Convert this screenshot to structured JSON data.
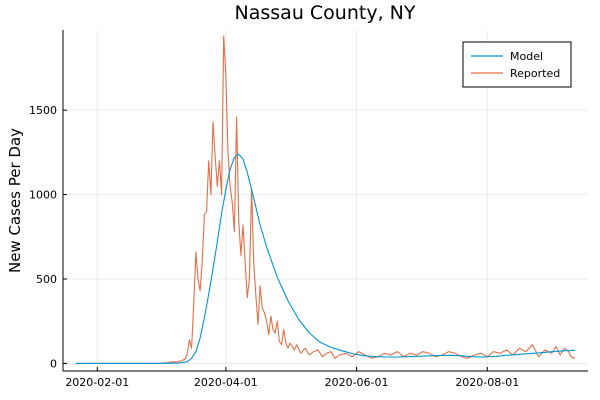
{
  "chart_data": {
    "type": "line",
    "title": "Nassau County, NY",
    "xlabel": "",
    "ylabel": "New Cases Per Day",
    "x_type": "date",
    "x_start": "2020-01-22",
    "x_end": "2020-09-11",
    "xlim": [
      "2020-01-16",
      "2020-09-17"
    ],
    "ylim": [
      -45,
      1975
    ],
    "x_ticks": [
      "2020-02-01",
      "2020-04-01",
      "2020-06-01",
      "2020-08-01"
    ],
    "y_ticks": [
      0,
      500,
      1000,
      1500
    ],
    "grid": true,
    "legend_position": "top-right",
    "series": [
      {
        "name": "Model",
        "color": "#0096d1",
        "x": [
          "2020-01-22",
          "2020-03-01",
          "2020-03-10",
          "2020-03-14",
          "2020-03-16",
          "2020-03-18",
          "2020-03-20",
          "2020-03-22",
          "2020-03-24",
          "2020-03-26",
          "2020-03-28",
          "2020-03-30",
          "2020-04-01",
          "2020-04-03",
          "2020-04-05",
          "2020-04-07",
          "2020-04-09",
          "2020-04-11",
          "2020-04-14",
          "2020-04-17",
          "2020-04-20",
          "2020-04-25",
          "2020-04-30",
          "2020-05-05",
          "2020-05-10",
          "2020-05-15",
          "2020-05-20",
          "2020-05-25",
          "2020-05-31",
          "2020-06-05",
          "2020-06-10",
          "2020-06-15",
          "2020-06-20",
          "2020-06-25",
          "2020-06-30",
          "2020-07-05",
          "2020-07-10",
          "2020-07-15",
          "2020-07-20",
          "2020-07-25",
          "2020-07-30",
          "2020-08-05",
          "2020-08-10",
          "2020-08-15",
          "2020-08-20",
          "2020-08-25",
          "2020-08-30",
          "2020-09-04",
          "2020-09-11"
        ],
        "values": [
          0,
          0,
          2,
          10,
          30,
          70,
          150,
          270,
          410,
          560,
          720,
          890,
          1030,
          1150,
          1220,
          1240,
          1210,
          1130,
          980,
          820,
          690,
          510,
          370,
          260,
          180,
          125,
          95,
          75,
          55,
          45,
          40,
          38,
          38,
          40,
          42,
          45,
          47,
          48,
          45,
          40,
          38,
          42,
          48,
          52,
          58,
          62,
          68,
          73,
          78
        ]
      },
      {
        "name": "Reported",
        "color": "#e26f46",
        "x": [
          "2020-01-22",
          "2020-03-01",
          "2020-03-05",
          "2020-03-07",
          "2020-03-09",
          "2020-03-11",
          "2020-03-13",
          "2020-03-14",
          "2020-03-15",
          "2020-03-16",
          "2020-03-17",
          "2020-03-18",
          "2020-03-19",
          "2020-03-20",
          "2020-03-21",
          "2020-03-22",
          "2020-03-23",
          "2020-03-24",
          "2020-03-25",
          "2020-03-26",
          "2020-03-27",
          "2020-03-28",
          "2020-03-29",
          "2020-03-30",
          "2020-03-31",
          "2020-04-01",
          "2020-04-02",
          "2020-04-03",
          "2020-04-04",
          "2020-04-05",
          "2020-04-06",
          "2020-04-07",
          "2020-04-08",
          "2020-04-09",
          "2020-04-10",
          "2020-04-11",
          "2020-04-12",
          "2020-04-13",
          "2020-04-14",
          "2020-04-15",
          "2020-04-16",
          "2020-04-17",
          "2020-04-18",
          "2020-04-19",
          "2020-04-20",
          "2020-04-21",
          "2020-04-22",
          "2020-04-23",
          "2020-04-24",
          "2020-04-25",
          "2020-04-26",
          "2020-04-27",
          "2020-04-28",
          "2020-04-29",
          "2020-04-30",
          "2020-05-01",
          "2020-05-02",
          "2020-05-03",
          "2020-05-04",
          "2020-05-06",
          "2020-05-08",
          "2020-05-10",
          "2020-05-12",
          "2020-05-14",
          "2020-05-16",
          "2020-05-18",
          "2020-05-20",
          "2020-05-22",
          "2020-05-24",
          "2020-05-27",
          "2020-05-30",
          "2020-06-02",
          "2020-06-05",
          "2020-06-08",
          "2020-06-11",
          "2020-06-14",
          "2020-06-17",
          "2020-06-20",
          "2020-06-23",
          "2020-06-26",
          "2020-06-29",
          "2020-07-02",
          "2020-07-05",
          "2020-07-08",
          "2020-07-11",
          "2020-07-14",
          "2020-07-17",
          "2020-07-20",
          "2020-07-23",
          "2020-07-26",
          "2020-07-29",
          "2020-08-01",
          "2020-08-04",
          "2020-08-07",
          "2020-08-10",
          "2020-08-13",
          "2020-08-16",
          "2020-08-19",
          "2020-08-22",
          "2020-08-25",
          "2020-08-28",
          "2020-08-31",
          "2020-09-02",
          "2020-09-04",
          "2020-09-06",
          "2020-09-08",
          "2020-09-09",
          "2020-09-11"
        ],
        "values": [
          0,
          0,
          5,
          10,
          8,
          15,
          25,
          60,
          140,
          90,
          350,
          660,
          500,
          430,
          610,
          880,
          900,
          1200,
          1000,
          1430,
          1230,
          1050,
          1200,
          1000,
          1940,
          1700,
          1250,
          1050,
          950,
          780,
          1460,
          850,
          640,
          820,
          600,
          390,
          500,
          1030,
          600,
          400,
          230,
          460,
          330,
          300,
          250,
          170,
          280,
          200,
          180,
          250,
          130,
          110,
          200,
          120,
          90,
          120,
          100,
          80,
          110,
          60,
          90,
          50,
          70,
          80,
          40,
          60,
          70,
          30,
          50,
          60,
          40,
          70,
          50,
          30,
          40,
          60,
          50,
          70,
          40,
          60,
          50,
          70,
          60,
          40,
          50,
          70,
          60,
          40,
          30,
          50,
          60,
          40,
          70,
          60,
          80,
          50,
          90,
          70,
          110,
          40,
          80,
          60,
          100,
          50,
          90,
          70,
          40,
          30
        ]
      }
    ]
  }
}
